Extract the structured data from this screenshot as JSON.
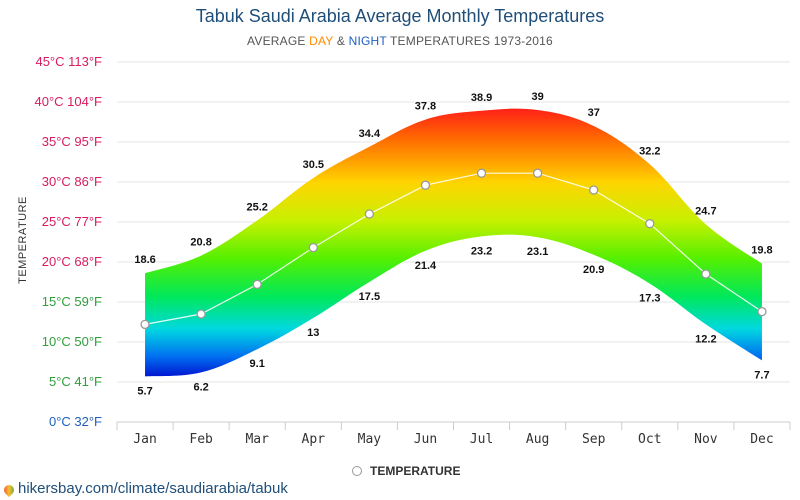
{
  "title": "Tabuk Saudi Arabia Average Monthly Temperatures",
  "subtitle": {
    "prefix": "AVERAGE ",
    "day": "DAY",
    "middle": " & ",
    "night": "NIGHT",
    "suffix": " TEMPERATURES 1973-2016"
  },
  "legend": {
    "label": "TEMPERATURE"
  },
  "source": "hikersbay.com/climate/saudiarabia/tabuk",
  "chart_data": {
    "type": "area",
    "title": "Tabuk Saudi Arabia Average Monthly Temperatures",
    "subtitle": "AVERAGE DAY & NIGHT TEMPERATURES 1973-2016",
    "ylabel": "TEMPERATURE",
    "xlabel": "",
    "categories": [
      "Jan",
      "Feb",
      "Mar",
      "Apr",
      "May",
      "Jun",
      "Jul",
      "Aug",
      "Sep",
      "Oct",
      "Nov",
      "Dec"
    ],
    "series": [
      {
        "name": "DAY",
        "values": [
          18.6,
          20.8,
          25.2,
          30.5,
          34.4,
          37.8,
          38.9,
          39,
          37,
          32.2,
          24.7,
          19.8
        ]
      },
      {
        "name": "NIGHT",
        "values": [
          5.7,
          6.2,
          9.1,
          13,
          17.5,
          21.4,
          23.2,
          23.1,
          20.9,
          17.3,
          12.2,
          7.7
        ]
      },
      {
        "name": "TEMPERATURE",
        "values": [
          12.2,
          13.5,
          17.2,
          21.8,
          26,
          29.6,
          31.1,
          31.1,
          29,
          24.8,
          18.5,
          13.8
        ]
      }
    ],
    "ylim": [
      0,
      45
    ],
    "yticks": [
      {
        "c": "0°C",
        "f": "32°F",
        "color": "#1f5fbf"
      },
      {
        "c": "5°C",
        "f": "41°F",
        "color": "#2e9e3a"
      },
      {
        "c": "10°C",
        "f": "50°F",
        "color": "#2e9e3a"
      },
      {
        "c": "15°C",
        "f": "59°F",
        "color": "#2e9e3a"
      },
      {
        "c": "20°C",
        "f": "68°F",
        "color": "#d81b60"
      },
      {
        "c": "25°C",
        "f": "77°F",
        "color": "#d81b60"
      },
      {
        "c": "30°C",
        "f": "86°F",
        "color": "#d81b60"
      },
      {
        "c": "35°C",
        "f": "95°F",
        "color": "#d81b60"
      },
      {
        "c": "40°C",
        "f": "104°F",
        "color": "#d81b60"
      },
      {
        "c": "45°C",
        "f": "113°F",
        "color": "#d81b60"
      }
    ],
    "grid": true,
    "legend_position": "bottom-center"
  }
}
